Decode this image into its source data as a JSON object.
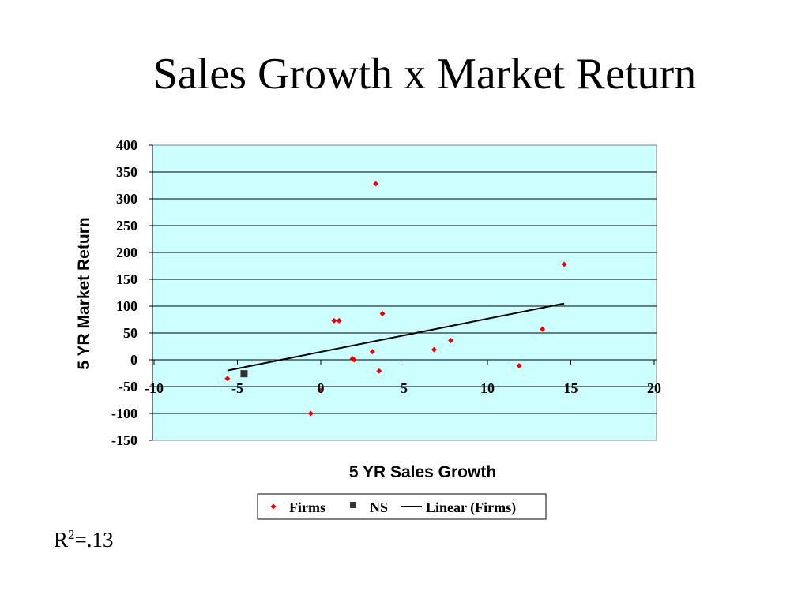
{
  "slide": {
    "title": "Sales Growth x Market Return",
    "r2_prefix": "R",
    "r2_exponent": "2",
    "r2_value": "=.13"
  },
  "chart_data": {
    "type": "scatter",
    "title": "",
    "xlabel": "5 YR Sales Growth",
    "ylabel": "5 YR Market Return",
    "xlim": [
      -10,
      20
    ],
    "ylim": [
      -150,
      400
    ],
    "xticks": [
      -10,
      -5,
      0,
      5,
      10,
      15,
      20
    ],
    "yticks": [
      400,
      350,
      300,
      250,
      200,
      150,
      100,
      50,
      0,
      -50,
      -100,
      -150
    ],
    "grid": "horizontal",
    "plot_background": "#ccffff",
    "legend_position": "bottom",
    "series": [
      {
        "name": "Firms",
        "marker": "diamond",
        "color": "#ee0000",
        "points": [
          [
            -5.6,
            -35
          ],
          [
            -0.6,
            -100
          ],
          [
            0.0,
            -57
          ],
          [
            0.8,
            73
          ],
          [
            1.1,
            73
          ],
          [
            1.9,
            2
          ],
          [
            2.0,
            0
          ],
          [
            3.1,
            15
          ],
          [
            3.3,
            328
          ],
          [
            3.5,
            -21
          ],
          [
            3.7,
            86
          ],
          [
            6.8,
            19
          ],
          [
            7.8,
            36
          ],
          [
            11.9,
            -11
          ],
          [
            13.3,
            57
          ],
          [
            14.6,
            178
          ]
        ]
      },
      {
        "name": "NS",
        "marker": "square",
        "color": "#333333",
        "points": [
          [
            -4.6,
            -26
          ]
        ]
      },
      {
        "name": "Linear (Firms)",
        "type": "line",
        "color": "#000000",
        "points": [
          [
            -5.6,
            -20
          ],
          [
            14.6,
            105
          ]
        ]
      }
    ]
  }
}
